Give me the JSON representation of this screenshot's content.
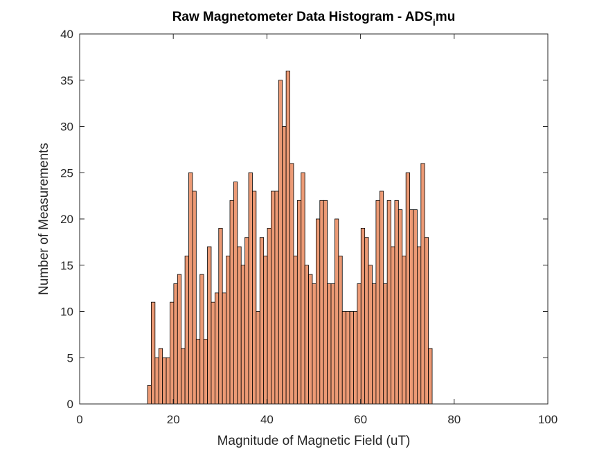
{
  "chart_data": {
    "type": "bar",
    "title": "Raw Magnetometer Data Histogram - ADS",
    "title_subscript": "i",
    "title_suffix": "mu",
    "xlabel": "Magnitude of Magnetic Field (uT)",
    "ylabel": "Number of Measurements",
    "xlim": [
      0,
      100
    ],
    "ylim": [
      0,
      40
    ],
    "xticks": [
      0,
      20,
      40,
      60,
      80,
      100
    ],
    "yticks": [
      0,
      5,
      10,
      15,
      20,
      25,
      30,
      35,
      40
    ],
    "grid": false,
    "legend": "none",
    "bin_start": 14.5,
    "bin_width": 0.8,
    "values": [
      2,
      11,
      5,
      6,
      5,
      5,
      11,
      13,
      14,
      6,
      16,
      25,
      23,
      7,
      14,
      7,
      17,
      11,
      12,
      19,
      12,
      16,
      22,
      24,
      17,
      15,
      18,
      25,
      23,
      10,
      18,
      16,
      19,
      23,
      23,
      35,
      30,
      36,
      26,
      16,
      22,
      25,
      15,
      14,
      13,
      20,
      22,
      22,
      13,
      13,
      20,
      16,
      10,
      10,
      10,
      10,
      13,
      19,
      18,
      15,
      13,
      22,
      23,
      13,
      22,
      17,
      22,
      21,
      16,
      25,
      21,
      21,
      17,
      26,
      18,
      6
    ],
    "bar_color": "#EC9A75",
    "edge_color": "#000000"
  }
}
